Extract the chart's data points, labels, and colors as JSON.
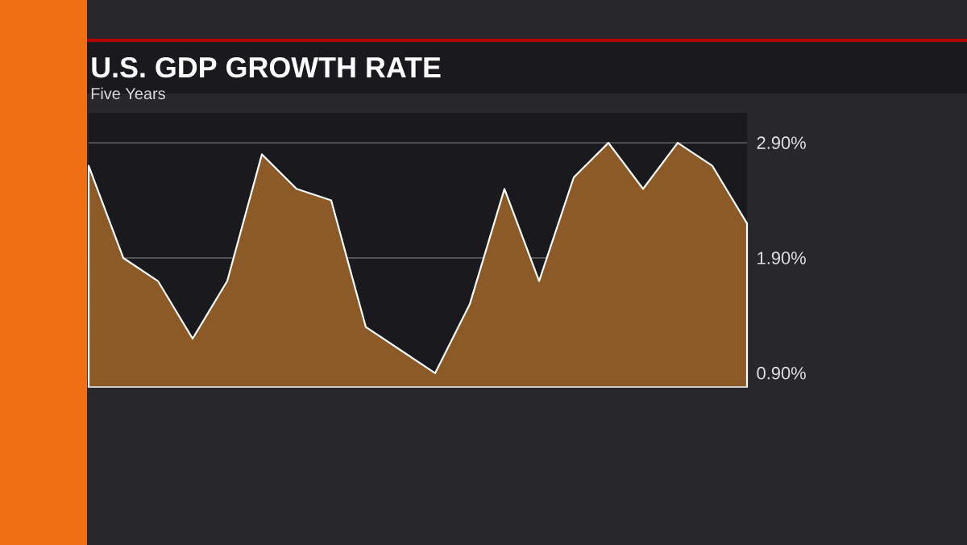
{
  "chart_data": {
    "type": "area",
    "title": "U.S. GDP GROWTH RATE",
    "subtitle": "Five Years",
    "categories": [
      null,
      null,
      null,
      null,
      null,
      null,
      null,
      null,
      null,
      null,
      null,
      null,
      null,
      null,
      null,
      null,
      null,
      null,
      null,
      null
    ],
    "values": [
      2.7,
      1.9,
      1.7,
      1.2,
      1.7,
      2.8,
      2.5,
      2.4,
      1.3,
      1.1,
      0.9,
      1.5,
      2.5,
      1.7,
      2.6,
      2.9,
      2.5,
      2.9,
      2.7,
      2.2
    ],
    "color": "#8c5a26",
    "ylim": [
      0.78,
      3.16
    ],
    "yticks": [
      {
        "value": 0.9,
        "label": "0.90%"
      },
      {
        "value": 1.9,
        "label": "1.90%"
      },
      {
        "value": 2.9,
        "label": "2.90%"
      }
    ],
    "grid": "y"
  }
}
